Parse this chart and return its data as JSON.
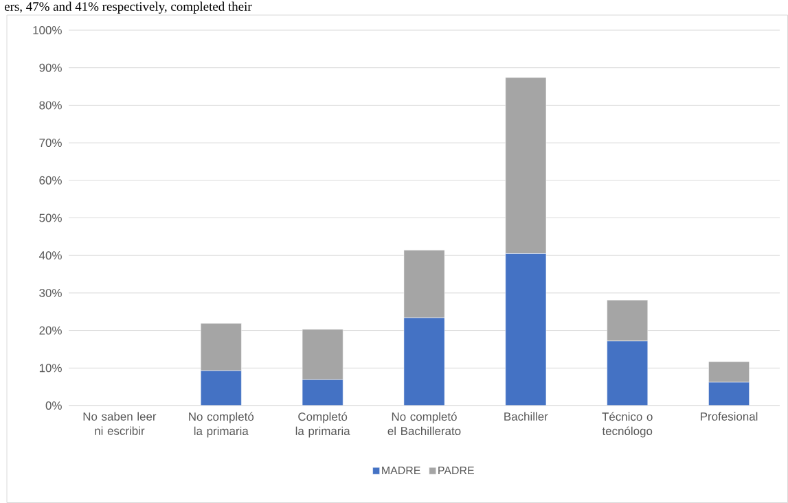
{
  "chart_data": {
    "type": "bar",
    "stacked": true,
    "categories": [
      "No saben leer ni escribir",
      "No completó la primaria",
      "Completó la primaria",
      "No completó el Bachillerato",
      "Bachiller",
      "Técnico o tecnólogo",
      "Profesional"
    ],
    "series": [
      {
        "name": "MADRE",
        "color": "#4472c4",
        "values": [
          0,
          9.3,
          6.9,
          23.4,
          40.5,
          17.2,
          6.2
        ]
      },
      {
        "name": "PADRE",
        "color": "#a5a5a5",
        "values": [
          0,
          12.6,
          13.4,
          18.0,
          46.9,
          10.9,
          5.5
        ]
      }
    ],
    "ylim": [
      0,
      100
    ],
    "yticks": [
      {
        "value": 0,
        "label": "0%"
      },
      {
        "value": 10,
        "label": "10%"
      },
      {
        "value": 20,
        "label": "20%"
      },
      {
        "value": 30,
        "label": "30%"
      },
      {
        "value": 40,
        "label": "40%"
      },
      {
        "value": 50,
        "label": "50%"
      },
      {
        "value": 60,
        "label": "60%"
      },
      {
        "value": 70,
        "label": "70%"
      },
      {
        "value": 80,
        "label": "80%"
      },
      {
        "value": 90,
        "label": "90%"
      },
      {
        "value": 100,
        "label": "100%"
      }
    ],
    "grid": "y",
    "legend": "bottom",
    "annotations": [
      "ers, 47% and 41% respectively, completed their"
    ]
  }
}
